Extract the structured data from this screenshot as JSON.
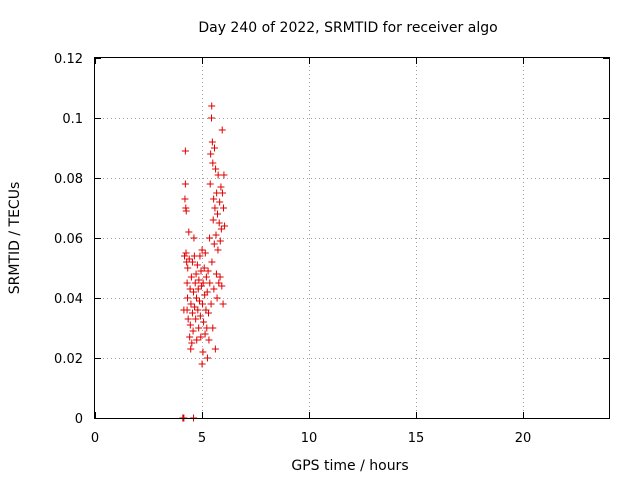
{
  "chart_data": {
    "type": "scatter",
    "title": "Day 240 of 2022, SRMTID for receiver algo",
    "xlabel": "GPS time / hours",
    "ylabel": "SRMTID / TECUs",
    "xlim": [
      0,
      24
    ],
    "ylim": [
      0,
      0.12
    ],
    "xticks": [
      0,
      5,
      10,
      15,
      20
    ],
    "xtick_labels": [
      "0",
      "5",
      "10",
      "15",
      "20"
    ],
    "yticks": [
      0,
      0.02,
      0.04,
      0.06,
      0.08,
      0.1,
      0.12
    ],
    "ytick_labels": [
      "0",
      "0.02",
      "0.04",
      "0.06",
      "0.08",
      "0.1",
      "0.12"
    ],
    "grid": true,
    "marker": "+",
    "color": "#e00000",
    "series": [
      {
        "name": "SRMTID",
        "points": [
          [
            4.1,
            0.0
          ],
          [
            4.12,
            0.0
          ],
          [
            4.15,
            0.0
          ],
          [
            4.6,
            0.0
          ],
          [
            4.15,
            0.036
          ],
          [
            4.18,
            0.054
          ],
          [
            4.2,
            0.073
          ],
          [
            4.22,
            0.089
          ],
          [
            4.22,
            0.078
          ],
          [
            4.24,
            0.07
          ],
          [
            4.25,
            0.055
          ],
          [
            4.26,
            0.069
          ],
          [
            4.28,
            0.052
          ],
          [
            4.3,
            0.045
          ],
          [
            4.3,
            0.036
          ],
          [
            4.32,
            0.04
          ],
          [
            4.33,
            0.05
          ],
          [
            4.35,
            0.033
          ],
          [
            4.38,
            0.062
          ],
          [
            4.4,
            0.053
          ],
          [
            4.42,
            0.027
          ],
          [
            4.44,
            0.043
          ],
          [
            4.45,
            0.031
          ],
          [
            4.47,
            0.023
          ],
          [
            4.48,
            0.038
          ],
          [
            4.5,
            0.047
          ],
          [
            4.52,
            0.025
          ],
          [
            4.55,
            0.052
          ],
          [
            4.55,
            0.035
          ],
          [
            4.58,
            0.029
          ],
          [
            4.6,
            0.042
          ],
          [
            4.62,
            0.06
          ],
          [
            4.64,
            0.054
          ],
          [
            4.65,
            0.037
          ],
          [
            4.68,
            0.045
          ],
          [
            4.7,
            0.033
          ],
          [
            4.72,
            0.048
          ],
          [
            4.74,
            0.04
          ],
          [
            4.75,
            0.026
          ],
          [
            4.78,
            0.051
          ],
          [
            4.8,
            0.036
          ],
          [
            4.82,
            0.043
          ],
          [
            4.84,
            0.03
          ],
          [
            4.85,
            0.046
          ],
          [
            4.88,
            0.039
          ],
          [
            4.9,
            0.054
          ],
          [
            4.92,
            0.034
          ],
          [
            4.94,
            0.027
          ],
          [
            4.95,
            0.049
          ],
          [
            4.97,
            0.044
          ],
          [
            5.0,
            0.018
          ],
          [
            5.0,
            0.056
          ],
          [
            5.02,
            0.038
          ],
          [
            5.04,
            0.022
          ],
          [
            5.05,
            0.045
          ],
          [
            5.07,
            0.032
          ],
          [
            5.1,
            0.05
          ],
          [
            5.12,
            0.041
          ],
          [
            5.14,
            0.028
          ],
          [
            5.15,
            0.055
          ],
          [
            5.18,
            0.036
          ],
          [
            5.2,
            0.047
          ],
          [
            5.22,
            0.03
          ],
          [
            5.24,
            0.042
          ],
          [
            5.25,
            0.02
          ],
          [
            5.28,
            0.049
          ],
          [
            5.3,
            0.035
          ],
          [
            5.32,
            0.026
          ],
          [
            5.35,
            0.06
          ],
          [
            5.36,
            0.045
          ],
          [
            5.38,
            0.078
          ],
          [
            5.4,
            0.088
          ],
          [
            5.42,
            0.038
          ],
          [
            5.44,
            0.1
          ],
          [
            5.45,
            0.104
          ],
          [
            5.46,
            0.052
          ],
          [
            5.48,
            0.092
          ],
          [
            5.5,
            0.085
          ],
          [
            5.5,
            0.03
          ],
          [
            5.52,
            0.066
          ],
          [
            5.54,
            0.073
          ],
          [
            5.55,
            0.043
          ],
          [
            5.57,
            0.058
          ],
          [
            5.58,
            0.09
          ],
          [
            5.6,
            0.07
          ],
          [
            5.62,
            0.023
          ],
          [
            5.63,
            0.083
          ],
          [
            5.65,
            0.061
          ],
          [
            5.67,
            0.048
          ],
          [
            5.68,
            0.075
          ],
          [
            5.7,
            0.04
          ],
          [
            5.72,
            0.068
          ],
          [
            5.74,
            0.056
          ],
          [
            5.75,
            0.081
          ],
          [
            5.78,
            0.045
          ],
          [
            5.8,
            0.065
          ],
          [
            5.82,
            0.072
          ],
          [
            5.84,
            0.047
          ],
          [
            5.85,
            0.059
          ],
          [
            5.88,
            0.077
          ],
          [
            5.9,
            0.063
          ],
          [
            5.92,
            0.044
          ],
          [
            5.94,
            0.096
          ],
          [
            5.95,
            0.075
          ],
          [
            5.98,
            0.038
          ],
          [
            6.0,
            0.07
          ],
          [
            6.02,
            0.081
          ],
          [
            6.05,
            0.064
          ]
        ]
      }
    ]
  }
}
